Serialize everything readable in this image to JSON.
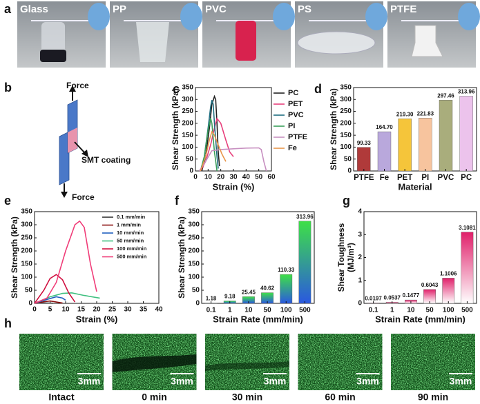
{
  "photos_a": {
    "letter": "a",
    "labels": [
      "Glass",
      "PP",
      "PVC",
      "PS",
      "PTFE"
    ]
  },
  "diagram_b": {
    "letter": "b",
    "top": "Force",
    "bottom": "Force",
    "coating": "SMT coating"
  },
  "images_h": {
    "letter": "h",
    "scale": "3mm",
    "labels": [
      "Intact",
      "0 min",
      "30 min",
      "60 min",
      "90 min"
    ]
  },
  "chart_data": [
    {
      "type": "line",
      "panel": "c",
      "xlabel": "Strain (%)",
      "ylabel": "Shear Strength (kPa)",
      "xlim": [
        0,
        60
      ],
      "xticks": [
        0,
        10,
        20,
        30,
        40,
        50,
        60
      ],
      "ylim": [
        0,
        350
      ],
      "yticks": [
        0,
        50,
        100,
        150,
        200,
        250,
        300,
        350
      ],
      "legend": "outside-right",
      "series": [
        {
          "name": "PC",
          "color": "#222222",
          "x": [
            5,
            8,
            11,
            13,
            15,
            16,
            17,
            18,
            19
          ],
          "values": [
            0,
            60,
            180,
            280,
            313,
            300,
            200,
            80,
            20
          ]
        },
        {
          "name": "PET",
          "color": "#e8407c",
          "x": [
            4,
            8,
            12,
            15,
            17,
            20,
            24,
            27,
            30
          ],
          "values": [
            0,
            40,
            110,
            180,
            220,
            200,
            130,
            80,
            60
          ]
        },
        {
          "name": "PVC",
          "color": "#1f6e80",
          "x": [
            4,
            7,
            10,
            12,
            13,
            14,
            15,
            17,
            18
          ],
          "values": [
            0,
            60,
            180,
            270,
            297,
            280,
            200,
            60,
            10
          ]
        },
        {
          "name": "PI",
          "color": "#3a9e5a",
          "x": [
            4,
            7,
            10,
            12,
            13,
            15,
            17
          ],
          "values": [
            0,
            60,
            170,
            221,
            200,
            80,
            0
          ]
        },
        {
          "name": "PTFE",
          "color": "#c78fc0",
          "x": [
            3,
            8,
            13,
            20,
            30,
            40,
            50,
            52,
            54,
            56
          ],
          "values": [
            0,
            40,
            85,
            90,
            93,
            96,
            97,
            90,
            40,
            0
          ]
        },
        {
          "name": "Fe",
          "color": "#e8964a",
          "x": [
            4,
            8,
            11,
            13,
            15,
            18,
            21,
            24
          ],
          "values": [
            0,
            60,
            130,
            165,
            150,
            110,
            70,
            40
          ]
        }
      ]
    },
    {
      "type": "bar",
      "panel": "d",
      "xlabel": "Material",
      "ylabel": "Shear Strength (kPa)",
      "ylim": [
        0,
        350
      ],
      "yticks": [
        0,
        50,
        100,
        150,
        200,
        250,
        300,
        350
      ],
      "categories": [
        "PTFE",
        "Fe",
        "PET",
        "PI",
        "PVC",
        "PC"
      ],
      "values": [
        99.33,
        164.7,
        219.3,
        221.83,
        297.46,
        313.96
      ],
      "value_labels": [
        "99.33",
        "164.70",
        "219.30",
        "221.83",
        "297.46",
        "313.96"
      ],
      "colors": [
        "#b03a3a",
        "#b9a8dc",
        "#f5c53a",
        "#f7c49e",
        "#a9ad7c",
        "#ecc3ec"
      ]
    },
    {
      "type": "line",
      "panel": "e",
      "xlabel": "Strain (%)",
      "ylabel": "Shear Strength (kPa)",
      "xlim": [
        0,
        40
      ],
      "xticks": [
        0,
        5,
        10,
        15,
        20,
        25,
        30,
        35,
        40
      ],
      "ylim": [
        0,
        350
      ],
      "yticks": [
        0,
        50,
        100,
        150,
        200,
        250,
        300,
        350
      ],
      "legend": "upper-right",
      "series": [
        {
          "name": "0.1 mm/min",
          "color": "#333333",
          "x": [
            0,
            2,
            4,
            6
          ],
          "values": [
            0,
            1,
            1.18,
            0.5
          ]
        },
        {
          "name": "1 mm/min",
          "color": "#8b1010",
          "x": [
            0,
            3,
            5,
            7,
            9
          ],
          "values": [
            0,
            6,
            9,
            5,
            1
          ]
        },
        {
          "name": "10 mm/min",
          "color": "#2060c0",
          "x": [
            0,
            4,
            7,
            9,
            10
          ],
          "values": [
            0,
            15,
            25,
            20,
            12
          ]
        },
        {
          "name": "50 mm/min",
          "color": "#40c080",
          "x": [
            0,
            5,
            9,
            12,
            16,
            21
          ],
          "values": [
            0,
            25,
            38,
            40,
            30,
            20
          ]
        },
        {
          "name": "100 mm/min",
          "color": "#d01040",
          "x": [
            0,
            3,
            5,
            7,
            9,
            11,
            13
          ],
          "values": [
            0,
            50,
            95,
            110,
            90,
            40,
            5
          ]
        },
        {
          "name": "500 mm/min",
          "color": "#f03c78",
          "x": [
            0,
            4,
            7,
            10,
            13,
            14.5,
            16,
            18,
            20
          ],
          "values": [
            0,
            20,
            80,
            200,
            300,
            314,
            290,
            150,
            45
          ]
        }
      ]
    },
    {
      "type": "bar",
      "panel": "f",
      "xlabel": "Strain Rate (mm/min)",
      "ylabel": "Shear Strength (kPa)",
      "ylim": [
        0,
        350
      ],
      "yticks": [
        0,
        50,
        100,
        150,
        200,
        250,
        300,
        350
      ],
      "categories": [
        "0.1",
        "1",
        "10",
        "50",
        "100",
        "500"
      ],
      "values": [
        1.18,
        9.18,
        25.45,
        40.62,
        110.33,
        313.96
      ],
      "gradient": [
        "#3ee046",
        "#2a58e0"
      ]
    },
    {
      "type": "bar",
      "panel": "g",
      "xlabel": "Strain Rate (mm/min)",
      "ylabel": "Shear Toughness",
      "ylabel_unit": "(MJ/m³)",
      "ylim": [
        0,
        4
      ],
      "yticks": [
        0,
        1,
        2,
        3,
        4
      ],
      "categories": [
        "0.1",
        "1",
        "10",
        "50",
        "100",
        "500"
      ],
      "values": [
        0.0197,
        0.0537,
        0.1477,
        0.6043,
        1.1006,
        3.1081
      ],
      "gradient": [
        "#e0206a",
        "#ffffff"
      ]
    }
  ]
}
